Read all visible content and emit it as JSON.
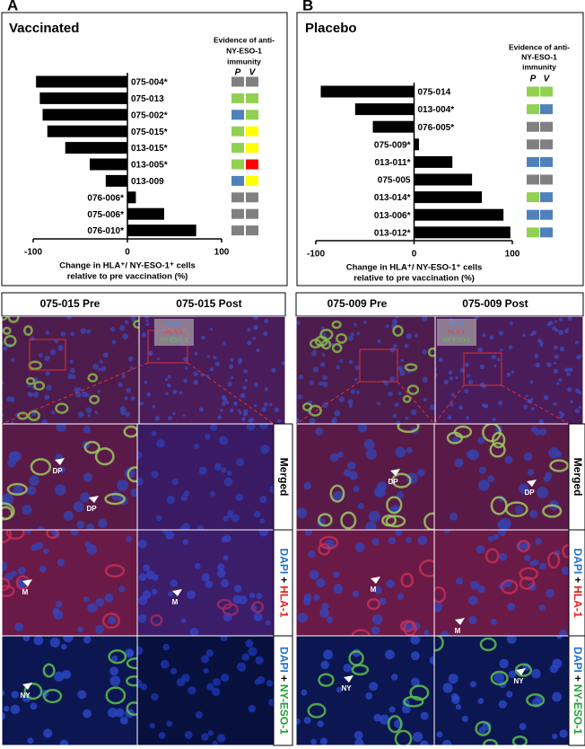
{
  "chart_data": [
    {
      "type": "bar",
      "orientation": "horizontal",
      "panel": "A",
      "title": "Vaccinated",
      "categories": [
        "075-004*",
        "075-013",
        "075-002*",
        "075-015*",
        "013-015*",
        "013-005*",
        "013-009",
        "076-006*",
        "075-006*",
        "076-010*"
      ],
      "values": [
        -97,
        -93,
        -90,
        -85,
        -66,
        -40,
        -23,
        9,
        39,
        73
      ],
      "color": "#000000",
      "xlim": [
        -100,
        100
      ],
      "xticks": [
        -100,
        0,
        100
      ],
      "xlabel": [
        "Change in HLA⁺/ NY-ESO-1⁺ cells",
        "relative to pre vaccination (%)"
      ],
      "evidence_title": [
        "Evidence of anti-",
        "NY-ESO-1",
        "immunity"
      ],
      "evidence_columns": [
        "P",
        "V"
      ],
      "evidence_colors": [
        [
          "#808080",
          "#808080"
        ],
        [
          "#92d050",
          "#92d050"
        ],
        [
          "#4f81bd",
          "#92d050"
        ],
        [
          "#92d050",
          "#ffff00"
        ],
        [
          "#92d050",
          "#ffff00"
        ],
        [
          "#92d050",
          "#ff0000"
        ],
        [
          "#4f81bd",
          "#ffff00"
        ],
        [
          "#808080",
          "#808080"
        ],
        [
          "#808080",
          "#808080"
        ],
        [
          "#808080",
          "#808080"
        ]
      ]
    },
    {
      "type": "bar",
      "orientation": "horizontal",
      "panel": "B",
      "title": "Placebo",
      "categories": [
        "075-014",
        "013-004*",
        "076-005*",
        "075-009*",
        "013-011*",
        "075-005",
        "013-014*",
        "013-006*",
        "013-012*"
      ],
      "values": [
        -95,
        -60,
        -42,
        5,
        39,
        59,
        69,
        91,
        98
      ],
      "color": "#000000",
      "xlim": [
        -100,
        100
      ],
      "xticks": [
        -100,
        0,
        100
      ],
      "xlabel": [
        "Change in HLA⁺/ NY-ESO-1⁺ cells",
        "relative to pre vaccination (%)"
      ],
      "evidence_title": [
        "Evidence of anti-",
        "NY-ESO-1",
        "immunity"
      ],
      "evidence_columns": [
        "P",
        "V"
      ],
      "evidence_colors": [
        [
          "#92d050",
          "#92d050"
        ],
        [
          "#92d050",
          "#4f81bd"
        ],
        [
          "#808080",
          "#808080"
        ],
        [
          "#808080",
          "#808080"
        ],
        [
          "#4f81bd",
          "#4f81bd"
        ],
        [
          "#808080",
          "#808080"
        ],
        [
          "#92d050",
          "#4f81bd"
        ],
        [
          "#4f81bd",
          "#4f81bd"
        ],
        [
          "#92d050",
          "#4f81bd"
        ]
      ]
    }
  ],
  "image_panels": [
    {
      "headers": [
        "075-015 Pre",
        "075-015 Post"
      ],
      "legend": [
        "DAPI",
        "HLA-1",
        "NY-ESO-1"
      ],
      "row_labels": [
        [
          "Merged"
        ],
        [
          "DAPI",
          "+",
          "HLA-1"
        ],
        [
          "DAPI",
          "+",
          "NY-ESO-1"
        ]
      ],
      "arrows": [
        "DP",
        "DP",
        "M",
        "M",
        "NY"
      ]
    },
    {
      "headers": [
        "075-009 Pre",
        "075-009 Post"
      ],
      "legend": [
        "DAPI",
        "HLA-1",
        "NY-ESO-1"
      ],
      "row_labels": [
        [
          "Merged"
        ],
        [
          "DAPI",
          "+",
          "HLA-1"
        ],
        [
          "DAPI",
          "+",
          "NY-ESO-1"
        ]
      ],
      "arrows": [
        "DP",
        "DP",
        "M",
        "M",
        "NY",
        "NY"
      ]
    }
  ]
}
